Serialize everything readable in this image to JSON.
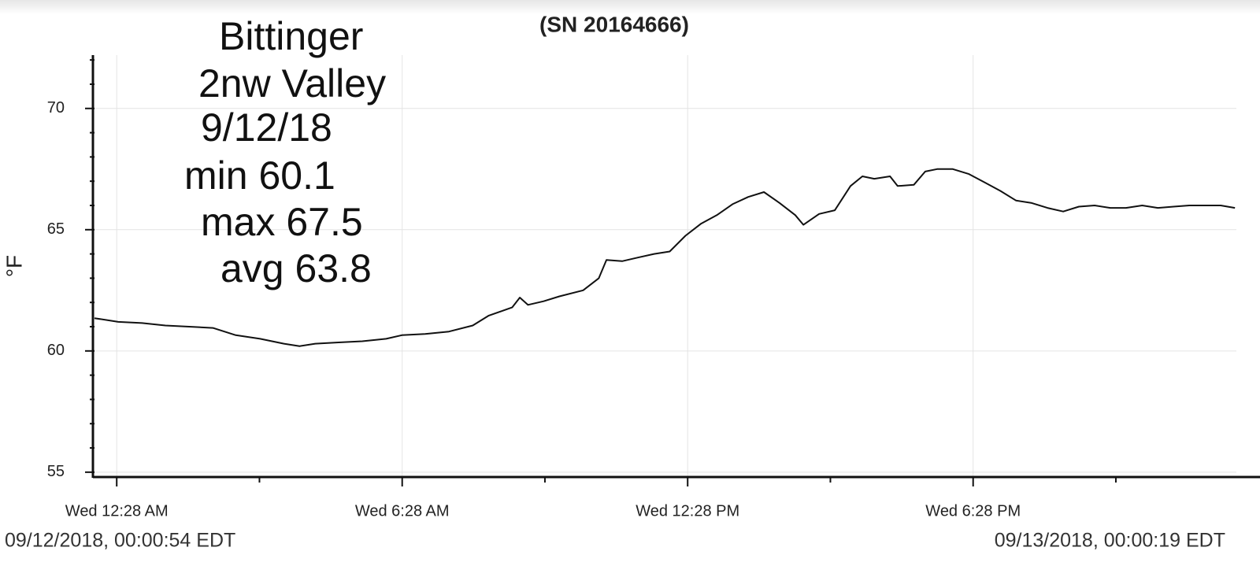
{
  "chart_data": {
    "type": "line",
    "title": "(SN 20164666)",
    "ylabel": "°F",
    "annotations": [
      "Bittinger",
      "2nw Valley",
      "9/12/18",
      "min 60.1",
      "max 67.5",
      "avg 63.8"
    ],
    "start_label": "09/12/2018, 00:00:54 EDT",
    "end_label": "09/13/2018, 00:00:19 EDT",
    "xlim": [
      0,
      24
    ],
    "xticks": [
      {
        "value": 0.467,
        "label": "Wed 12:28 AM"
      },
      {
        "value": 6.467,
        "label": "Wed 6:28 AM"
      },
      {
        "value": 12.467,
        "label": "Wed 12:28 PM"
      },
      {
        "value": 18.467,
        "label": "Wed 6:28 PM"
      }
    ],
    "xminorticks": [
      3.467,
      9.467,
      15.467,
      21.467
    ],
    "ylim": [
      54.8,
      72.2
    ],
    "yticks": [
      55,
      60,
      65,
      70
    ],
    "yminorticks": [
      56,
      57,
      58,
      59,
      61,
      62,
      63,
      64,
      66,
      67,
      68,
      69,
      71,
      72
    ],
    "grid": true,
    "x": [
      0.0,
      0.5,
      1.0,
      1.49,
      1.99,
      2.49,
      2.97,
      3.48,
      3.98,
      4.31,
      4.64,
      5.13,
      5.63,
      6.13,
      6.46,
      6.95,
      7.45,
      7.95,
      8.28,
      8.78,
      8.94,
      9.11,
      9.44,
      9.77,
      10.27,
      10.6,
      10.76,
      11.09,
      11.42,
      11.76,
      12.09,
      12.42,
      12.75,
      13.08,
      13.41,
      13.74,
      14.07,
      14.4,
      14.73,
      14.9,
      15.23,
      15.56,
      15.89,
      16.14,
      16.39,
      16.72,
      16.88,
      17.22,
      17.46,
      17.71,
      18.04,
      18.37,
      18.71,
      19.04,
      19.37,
      19.7,
      20.03,
      20.36,
      20.69,
      21.02,
      21.35,
      21.68,
      22.02,
      22.35,
      22.68,
      23.01,
      23.34,
      23.67,
      23.97
    ],
    "series": [
      {
        "color": "#111111",
        "values": [
          61.35,
          61.2,
          61.15,
          61.05,
          61.0,
          60.95,
          60.65,
          60.5,
          60.3,
          60.2,
          60.3,
          60.35,
          60.4,
          60.5,
          60.65,
          60.7,
          60.8,
          61.05,
          61.45,
          61.8,
          62.2,
          61.9,
          62.05,
          62.25,
          62.5,
          63.0,
          63.75,
          63.7,
          63.85,
          64.0,
          64.1,
          64.75,
          65.25,
          65.6,
          66.05,
          66.35,
          66.55,
          66.1,
          65.6,
          65.2,
          65.65,
          65.8,
          66.8,
          67.2,
          67.1,
          67.2,
          66.8,
          66.85,
          67.4,
          67.5,
          67.5,
          67.3,
          66.95,
          66.6,
          66.2,
          66.1,
          65.9,
          65.75,
          65.95,
          66.0,
          65.9,
          65.9,
          66.0,
          65.9,
          65.95,
          66.0,
          66.0,
          66.0,
          65.9
        ]
      }
    ]
  }
}
